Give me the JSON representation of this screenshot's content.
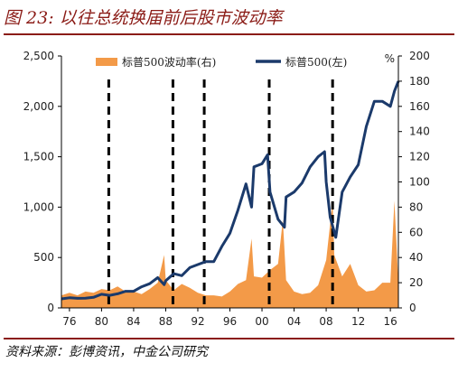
{
  "title": "图 23: 以往总统换届前后股市波动率",
  "source": "资料来源：彭博资讯，中金公司研究",
  "chart_data": {
    "type": "line",
    "unit_right": "%",
    "legend_placement": "top-center",
    "grid": false,
    "x_range": [
      1975,
      2017
    ],
    "x_ticks": [
      1976,
      1980,
      1984,
      1988,
      1992,
      1996,
      2000,
      2004,
      2008,
      2012,
      2016
    ],
    "x_tick_labels": [
      "76",
      "80",
      "84",
      "88",
      "92",
      "96",
      "00",
      "04",
      "08",
      "12",
      "16"
    ],
    "y_left": {
      "range": [
        0,
        2500
      ],
      "ticks": [
        0,
        500,
        1000,
        1500,
        2000,
        2500
      ],
      "tick_labels": [
        "0",
        "500",
        "1,000",
        "1,500",
        "2,000",
        "2,500"
      ]
    },
    "y_right": {
      "range": [
        0,
        200
      ],
      "ticks": [
        0,
        20,
        40,
        60,
        80,
        100,
        120,
        140,
        160,
        180,
        200
      ],
      "tick_labels": [
        "0",
        "20",
        "40",
        "60",
        "80",
        "100",
        "120",
        "140",
        "160",
        "180",
        "200"
      ]
    },
    "series": [
      {
        "name": "标普500波动率(右)",
        "type": "area",
        "axis": "right",
        "color": "#f39a48",
        "x": [
          1975,
          1976,
          1977,
          1978,
          1979,
          1980,
          1981,
          1982,
          1983,
          1984,
          1985,
          1986,
          1987,
          1987.8,
          1988,
          1989,
          1990,
          1991,
          1992,
          1993,
          1994,
          1995,
          1996,
          1997,
          1998,
          1998.7,
          1999,
          2000,
          2001,
          2002,
          2002.6,
          2003,
          2004,
          2005,
          2006,
          2007,
          2008,
          2008.8,
          2009,
          2010,
          2011,
          2012,
          2013,
          2014,
          2015,
          2016,
          2016.5,
          2017
        ],
        "values": [
          10,
          12,
          10,
          13,
          12,
          15,
          14,
          17,
          13,
          13,
          11,
          15,
          20,
          42,
          22,
          14,
          19,
          16,
          12,
          10,
          10,
          9,
          13,
          19,
          22,
          55,
          25,
          24,
          30,
          35,
          70,
          22,
          13,
          11,
          12,
          18,
          38,
          85,
          42,
          25,
          35,
          18,
          13,
          14,
          20,
          20,
          85,
          20
        ]
      },
      {
        "name": "标普500(左)",
        "type": "line",
        "axis": "left",
        "color": "#1b3a6b",
        "x": [
          1975,
          1976,
          1977,
          1978,
          1979,
          1980,
          1981,
          1982,
          1983,
          1984,
          1985,
          1986,
          1987,
          1987.8,
          1988,
          1989,
          1990,
          1991,
          1992,
          1993,
          1994,
          1995,
          1996,
          1997,
          1998,
          1998.7,
          1999,
          2000,
          2000.7,
          2001,
          2002,
          2002.8,
          2003,
          2004,
          2005,
          2006,
          2007,
          2007.8,
          2008,
          2008.5,
          2009.2,
          2010,
          2011,
          2012,
          2013,
          2014,
          2015,
          2016,
          2016.5,
          2017
        ],
        "values": [
          90,
          100,
          95,
          96,
          105,
          135,
          125,
          140,
          165,
          165,
          210,
          240,
          300,
          230,
          270,
          340,
          320,
          400,
          430,
          460,
          460,
          610,
          740,
          970,
          1230,
          1000,
          1400,
          1430,
          1520,
          1150,
          880,
          800,
          1100,
          1150,
          1240,
          1400,
          1500,
          1550,
          1250,
          900,
          700,
          1150,
          1300,
          1420,
          1800,
          2050,
          2050,
          2000,
          2150,
          2250
        ]
      }
    ],
    "dashed_lines_x": [
      1980.9,
      1988.9,
      1992.8,
      2000.9,
      2008.8
    ]
  }
}
